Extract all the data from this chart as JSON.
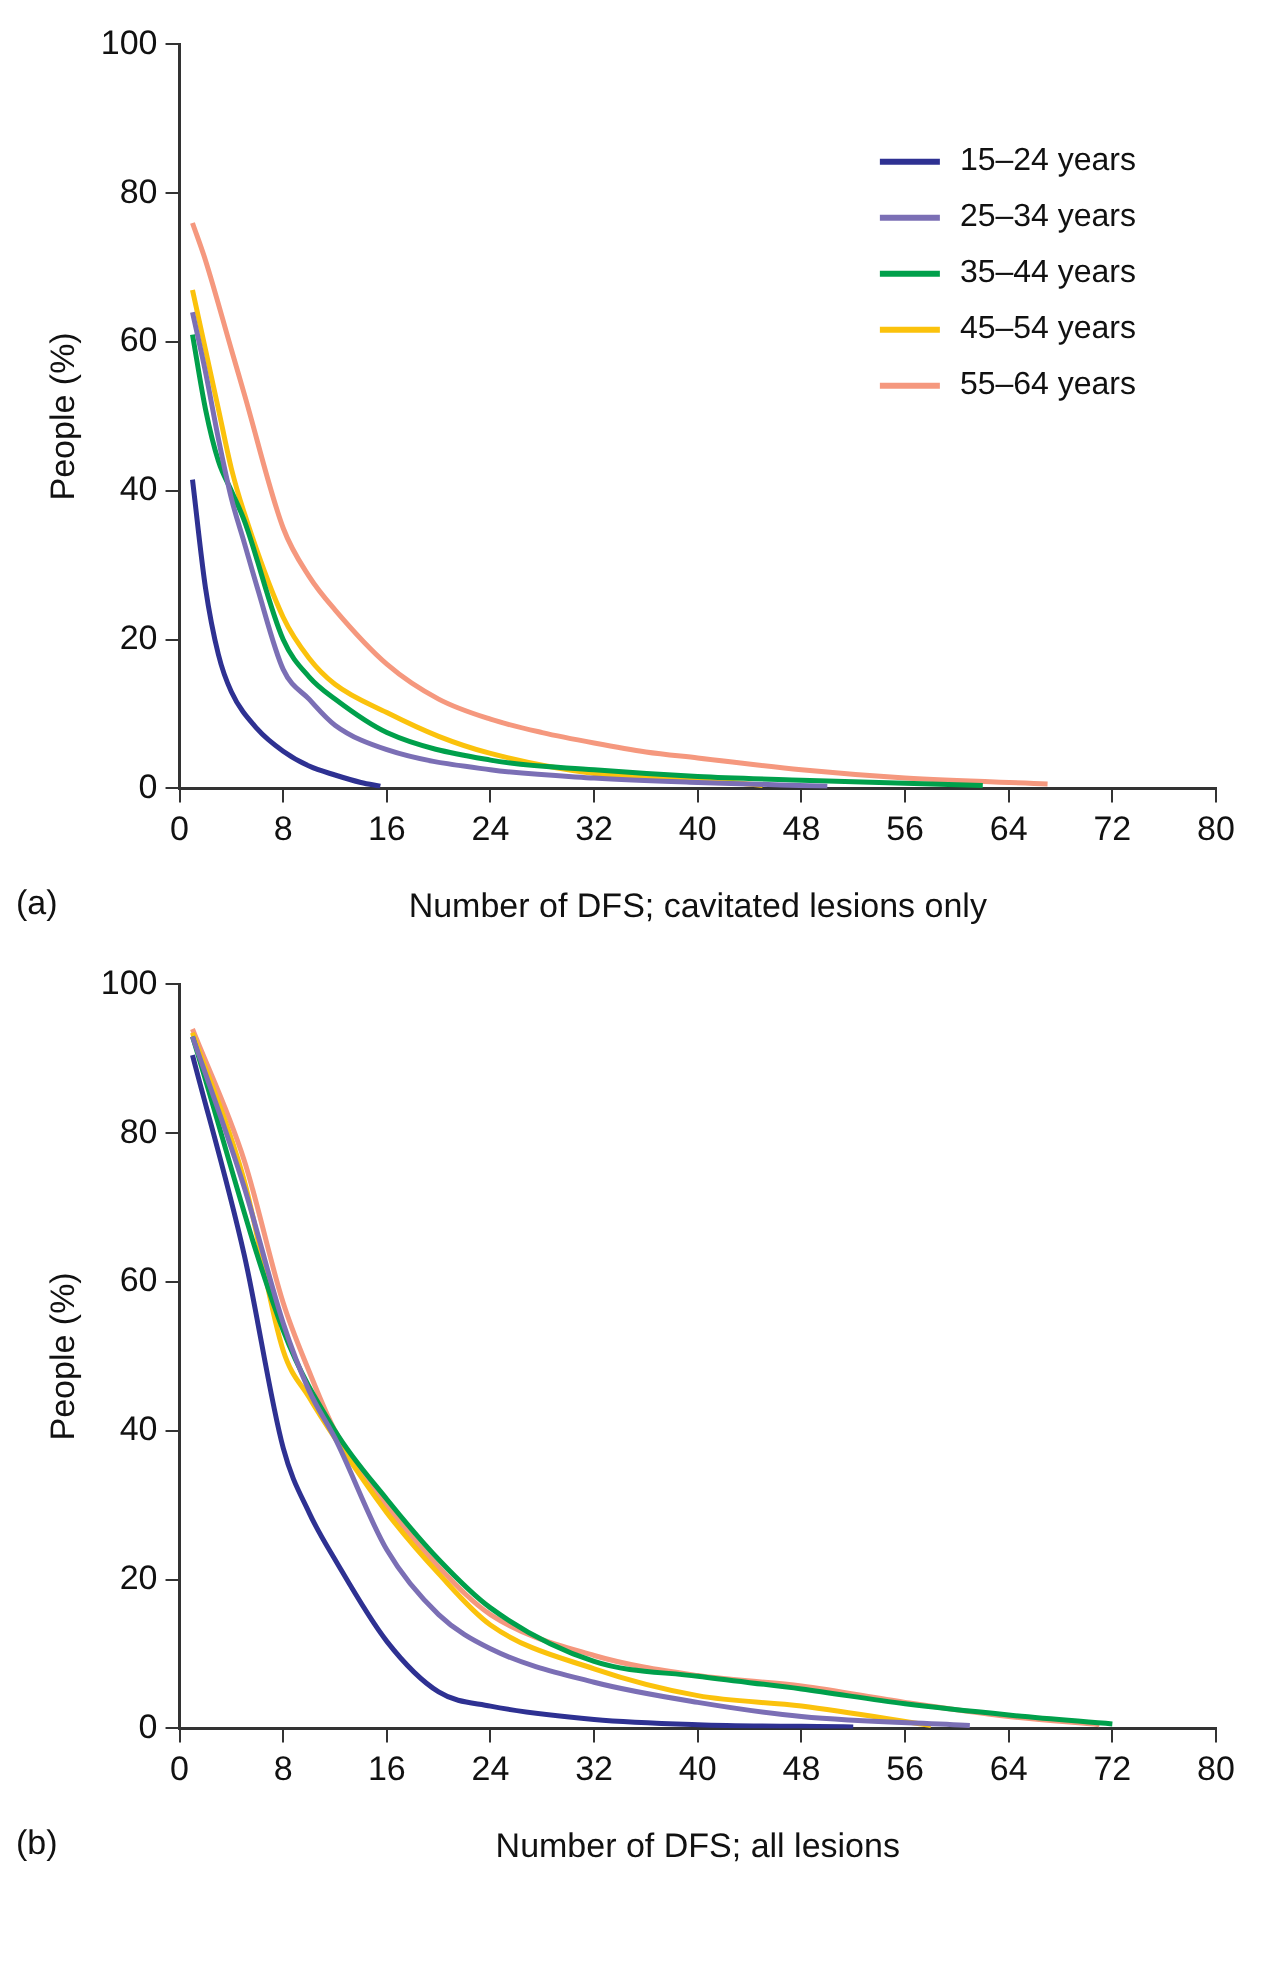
{
  "chart_data": [
    {
      "type": "line",
      "xlabel": "Number of DFS; cavitated lesions only",
      "ylabel": "People (%)",
      "annotations": [
        "(a)"
      ],
      "xlim": [
        0,
        80
      ],
      "xticks": [
        0,
        8,
        16,
        24,
        32,
        40,
        48,
        56,
        64,
        72,
        80
      ],
      "ylim": [
        0,
        100
      ],
      "yticks": [
        0,
        20,
        40,
        60,
        80,
        100
      ],
      "grid": false,
      "legend": "top right",
      "marker": "none",
      "line_style": "solid",
      "series": [
        {
          "name": "15–24 years",
          "color": "#2e3192",
          "x": [
            1,
            2,
            3,
            4,
            6,
            8,
            10,
            12,
            14,
            15.5
          ],
          "values": [
            41.5,
            27,
            18,
            13,
            8,
            5,
            3,
            1.8,
            0.8,
            0.3
          ]
        },
        {
          "name": "25–34 years",
          "color": "#7b6fb5",
          "x": [
            1,
            2,
            3,
            4,
            5,
            6,
            8,
            10,
            12,
            16,
            24,
            32,
            40,
            50
          ],
          "values": [
            64,
            56,
            47,
            39,
            33,
            27,
            16,
            12,
            8.5,
            5.2,
            2.5,
            1.4,
            0.8,
            0.3
          ]
        },
        {
          "name": "35–44 years",
          "color": "#00a04b",
          "x": [
            1,
            2,
            3,
            4,
            5,
            8,
            10,
            12,
            16,
            24,
            32,
            40,
            48,
            62
          ],
          "values": [
            61,
            51,
            44,
            40,
            36,
            20,
            15,
            12,
            7.5,
            3.8,
            2.5,
            1.6,
            1.1,
            0.4
          ]
        },
        {
          "name": "45–54 years",
          "color": "#fbc20c",
          "x": [
            1,
            2,
            3,
            4,
            5,
            8,
            10,
            12,
            16,
            20,
            24,
            32,
            40,
            45
          ],
          "values": [
            67,
            59,
            51,
            43,
            37,
            23,
            17.5,
            14,
            10.2,
            7,
            4.7,
            2,
            1.2,
            0.4
          ]
        },
        {
          "name": "55–64 years",
          "color": "#f5987e",
          "x": [
            1,
            2,
            4,
            5,
            8,
            10,
            12,
            16,
            20,
            24,
            28,
            32,
            36,
            40,
            48,
            56,
            67
          ],
          "values": [
            76,
            71,
            59,
            53,
            35,
            28.5,
            24,
            16.7,
            12,
            9.3,
            7.5,
            6.1,
            4.9,
            4.1,
            2.5,
            1.4,
            0.6
          ]
        }
      ]
    },
    {
      "type": "line",
      "xlabel": "Number of DFS; all lesions",
      "ylabel": "People (%)",
      "annotations": [
        "(b)"
      ],
      "xlim": [
        0,
        80
      ],
      "xticks": [
        0,
        8,
        16,
        24,
        32,
        40,
        48,
        56,
        64,
        72,
        80
      ],
      "ylim": [
        0,
        100
      ],
      "yticks": [
        0,
        20,
        40,
        60,
        80,
        100
      ],
      "grid": false,
      "marker": "none",
      "line_style": "solid",
      "series": [
        {
          "color": "#2e3192",
          "x": [
            1,
            5,
            8,
            10,
            12,
            16,
            20,
            24,
            32,
            40,
            52
          ],
          "values": [
            90.5,
            63.6,
            37.7,
            29,
            22.7,
            11.7,
            4.9,
            3,
            1.2,
            0.5,
            0.2
          ]
        },
        {
          "color": "#7b6fb5",
          "x": [
            1,
            5,
            8,
            10,
            12,
            16,
            20,
            24,
            32,
            40,
            48,
            61
          ],
          "values": [
            93,
            72.7,
            54.5,
            45.4,
            39,
            24,
            15.3,
            10.7,
            6.2,
            3.5,
            1.6,
            0.4
          ]
        },
        {
          "color": "#00a04b",
          "x": [
            1,
            8,
            12,
            16,
            20,
            24,
            32,
            40,
            48,
            56,
            64,
            72
          ],
          "values": [
            93,
            53.5,
            40,
            30.8,
            22.7,
            16.2,
            9,
            7,
            5.3,
            3.3,
            1.8,
            0.6
          ]
        },
        {
          "color": "#fbc20c",
          "x": [
            1,
            5,
            8,
            10,
            12,
            16,
            20,
            24,
            32,
            40,
            48,
            58
          ],
          "values": [
            93.5,
            73.6,
            50.8,
            44.5,
            39,
            29,
            20.8,
            13.9,
            8,
            4.4,
            3,
            0.4
          ]
        },
        {
          "color": "#f5987e",
          "x": [
            1,
            5,
            8,
            10,
            12,
            16,
            20,
            24,
            32,
            40,
            48,
            56,
            64,
            71
          ],
          "values": [
            94,
            76.3,
            57.2,
            48,
            40,
            29.9,
            21.7,
            15.3,
            9.8,
            7.1,
            5.7,
            3.5,
            1.6,
            0.5
          ]
        }
      ]
    }
  ]
}
